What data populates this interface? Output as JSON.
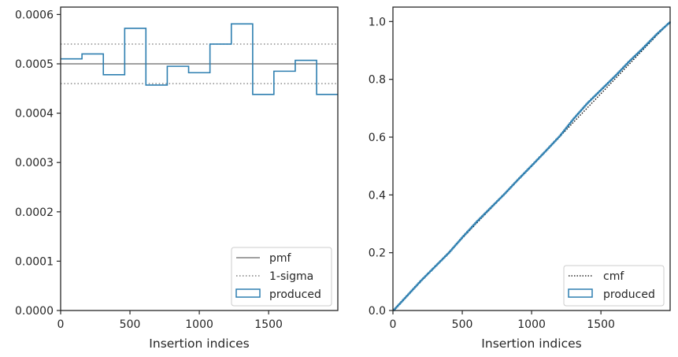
{
  "chart_data": [
    {
      "type": "line",
      "xlabel": "Insertion indices",
      "ylabel": "",
      "xlim": [
        0,
        1999
      ],
      "ylim": [
        0,
        0.000615
      ],
      "xticks": [
        0,
        500,
        1000,
        1500
      ],
      "xtick_labels": [
        "0",
        "500",
        "1000",
        "1500"
      ],
      "yticks": [
        0,
        0.0001,
        0.0002,
        0.0003,
        0.0004,
        0.0005,
        0.0006
      ],
      "ytick_labels": [
        "0.0000",
        "0.0001",
        "0.0002",
        "0.0003",
        "0.0004",
        "0.0005",
        "0.0006"
      ],
      "grid": false,
      "legend_position": "lower-right",
      "series": [
        {
          "name": "pmf",
          "style": "solid",
          "color": "#808080",
          "x": [
            0,
            1999
          ],
          "y": [
            0.0005,
            0.0005
          ]
        },
        {
          "name": "1-sigma",
          "style": "dotted",
          "color": "#808080",
          "bands": [
            0.00054,
            0.00046
          ],
          "x": [
            0,
            1999
          ]
        },
        {
          "name": "produced",
          "style": "step-histogram",
          "color": "#2e7fb0",
          "bin_edges": [
            0,
            154,
            308,
            462,
            615,
            769,
            923,
            1077,
            1231,
            1385,
            1538,
            1692,
            1846,
            1999
          ],
          "values": [
            0.00051,
            0.00052,
            0.000478,
            0.000572,
            0.000457,
            0.000495,
            0.000482,
            0.00054,
            0.000581,
            0.000438,
            0.000485,
            0.000507,
            0.000438
          ]
        }
      ]
    },
    {
      "type": "line",
      "xlabel": "Insertion indices",
      "ylabel": "",
      "xlim": [
        0,
        1999
      ],
      "ylim": [
        0,
        1.05
      ],
      "xticks": [
        0,
        500,
        1000,
        1500
      ],
      "xtick_labels": [
        "0",
        "500",
        "1000",
        "1500"
      ],
      "yticks": [
        0,
        0.2,
        0.4,
        0.6,
        0.8,
        1.0
      ],
      "ytick_labels": [
        "0.0",
        "0.2",
        "0.4",
        "0.6",
        "0.8",
        "1.0"
      ],
      "grid": false,
      "legend_position": "lower-right",
      "series": [
        {
          "name": "cmf",
          "style": "dotted",
          "color": "#000000",
          "x": [
            0,
            1999
          ],
          "y": [
            0,
            1
          ]
        },
        {
          "name": "produced",
          "style": "step",
          "color": "#2e7fb0",
          "x": [
            0,
            100,
            200,
            300,
            400,
            500,
            600,
            700,
            800,
            900,
            1000,
            1100,
            1200,
            1300,
            1400,
            1500,
            1600,
            1700,
            1800,
            1900,
            1999
          ],
          "y": [
            0,
            0.052,
            0.104,
            0.152,
            0.2,
            0.255,
            0.307,
            0.355,
            0.403,
            0.454,
            0.503,
            0.553,
            0.604,
            0.664,
            0.718,
            0.765,
            0.812,
            0.862,
            0.908,
            0.957,
            1.0
          ]
        }
      ]
    }
  ],
  "legends": {
    "left": [
      "pmf",
      "1-sigma",
      "produced"
    ],
    "right": [
      "cmf",
      "produced"
    ]
  }
}
